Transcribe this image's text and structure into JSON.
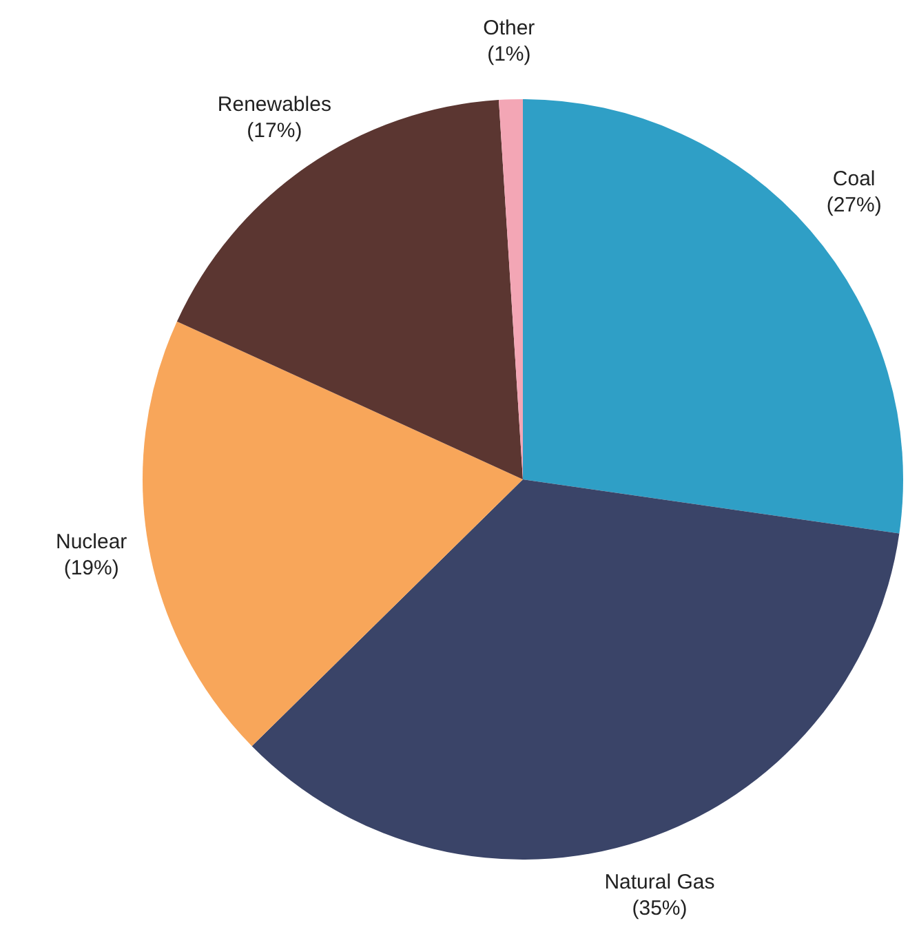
{
  "chart_data": {
    "type": "pie",
    "categories": [
      "Coal",
      "Natural Gas",
      "Nuclear",
      "Renewables",
      "Other"
    ],
    "values": [
      27,
      35,
      19,
      17,
      1
    ],
    "colors": [
      "#2f9fc6",
      "#3a4468",
      "#f8a65a",
      "#5b3631",
      "#f3a6b5"
    ],
    "value_labels": [
      "(27%)",
      "(35%)",
      "(19%)",
      "(17%)",
      "(1%)"
    ]
  }
}
